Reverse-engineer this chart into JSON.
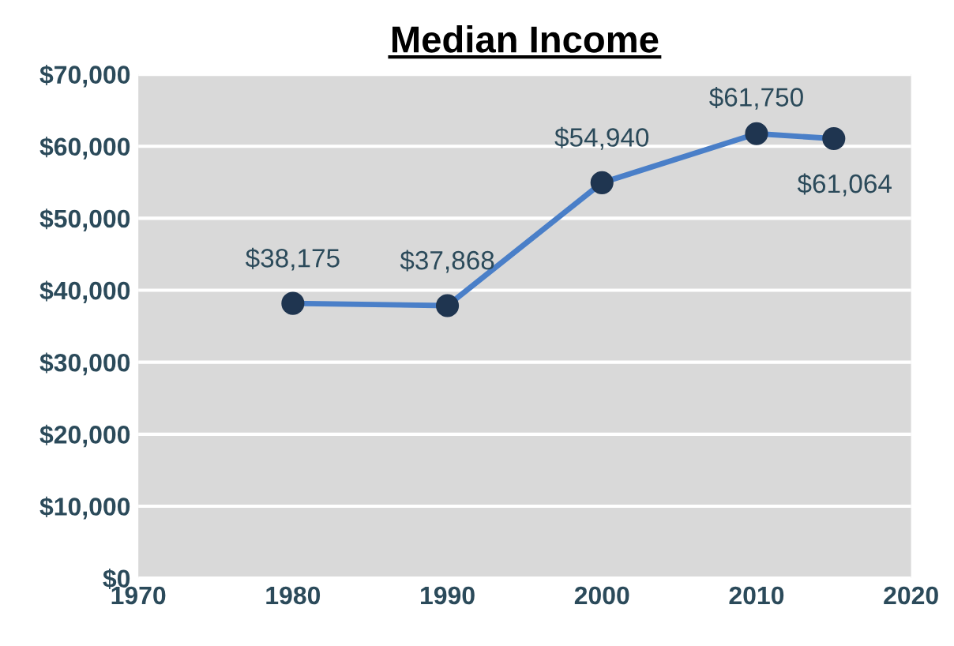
{
  "chart_data": {
    "type": "line",
    "title": "Median Income",
    "x": [
      1980,
      1990,
      2000,
      2010,
      2015
    ],
    "series": [
      {
        "color": "#4a7fc8",
        "colors": [
          "#1f3550",
          "#1f3550",
          "#1f3550",
          "#1f3550",
          "#1f3550"
        ],
        "values": [
          38175,
          37868,
          54940,
          61750,
          61064
        ],
        "value_labels": [
          "$38,175",
          "$37,868",
          "$54,940",
          "$61,750",
          "$61,064"
        ]
      }
    ],
    "xlim": [
      1970,
      2020
    ],
    "xticks": [
      1970,
      1980,
      1990,
      2000,
      2010,
      2020
    ],
    "ylim": [
      0,
      70000
    ],
    "yticks": [
      {
        "value": 0,
        "label": "$0"
      },
      {
        "value": 10000,
        "label": "$10,000"
      },
      {
        "value": 20000,
        "label": "$20,000"
      },
      {
        "value": 30000,
        "label": "$30,000"
      },
      {
        "value": 40000,
        "label": "$40,000"
      },
      {
        "value": 50000,
        "label": "$50,000"
      },
      {
        "value": 60000,
        "label": "$60,000"
      },
      {
        "value": 70000,
        "label": "$70,000"
      }
    ],
    "grid": "y",
    "marker": "circle",
    "line_style": "solid",
    "legend": false
  }
}
